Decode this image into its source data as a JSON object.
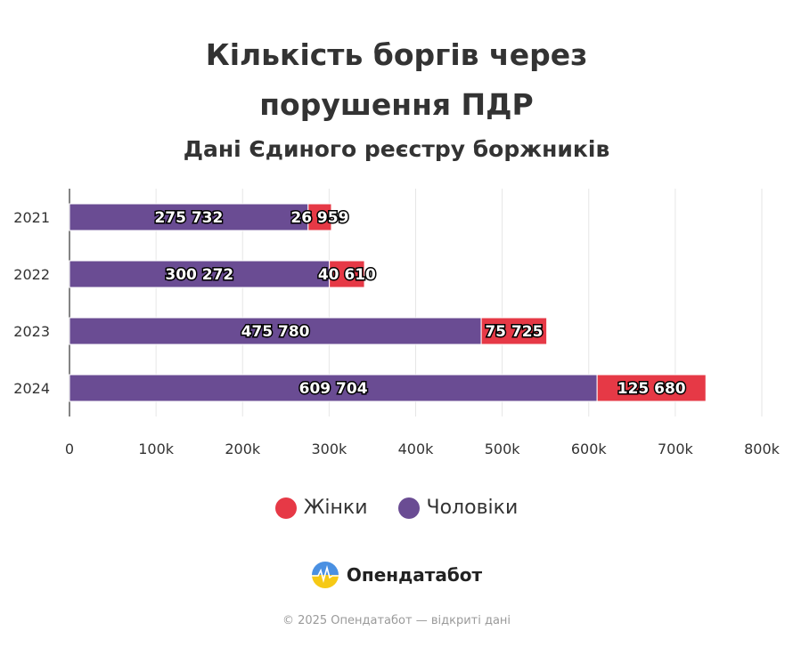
{
  "header": {
    "title_line1": "Кількість боргів через",
    "title_line2": "порушення ПДР",
    "subtitle": "Дані Єдиного реєстру боржників"
  },
  "chart_data": {
    "type": "bar",
    "orientation": "horizontal",
    "stacked": true,
    "categories": [
      "2021",
      "2022",
      "2023",
      "2024"
    ],
    "series": [
      {
        "name": "Чоловіки",
        "color": "#6a4c93",
        "values": [
          275732,
          300272,
          475780,
          609704
        ],
        "labels": [
          "275 732",
          "300 272",
          "475 780",
          "609 704"
        ]
      },
      {
        "name": "Жінки",
        "color": "#e63946",
        "values": [
          26959,
          40610,
          75725,
          125680
        ],
        "labels": [
          "26 959",
          "40 610",
          "75 725",
          "125 680"
        ]
      }
    ],
    "xlim": [
      0,
      800000
    ],
    "xticks": [
      {
        "value": 0,
        "label": "0"
      },
      {
        "value": 100000,
        "label": "100k"
      },
      {
        "value": 200000,
        "label": "200k"
      },
      {
        "value": 300000,
        "label": "300k"
      },
      {
        "value": 400000,
        "label": "400k"
      },
      {
        "value": 500000,
        "label": "500k"
      },
      {
        "value": 600000,
        "label": "600k"
      },
      {
        "value": 700000,
        "label": "700k"
      },
      {
        "value": 800000,
        "label": "800k"
      }
    ],
    "grid": true,
    "legend_position": "bottom-center"
  },
  "legend": [
    {
      "label": "Жінки",
      "color": "#e63946"
    },
    {
      "label": "Чоловіки",
      "color": "#6a4c93"
    }
  ],
  "branding": {
    "logo_text": "Опендатабот"
  },
  "footer": {
    "text": "© 2025 Опендатабот — відкриті дані"
  }
}
